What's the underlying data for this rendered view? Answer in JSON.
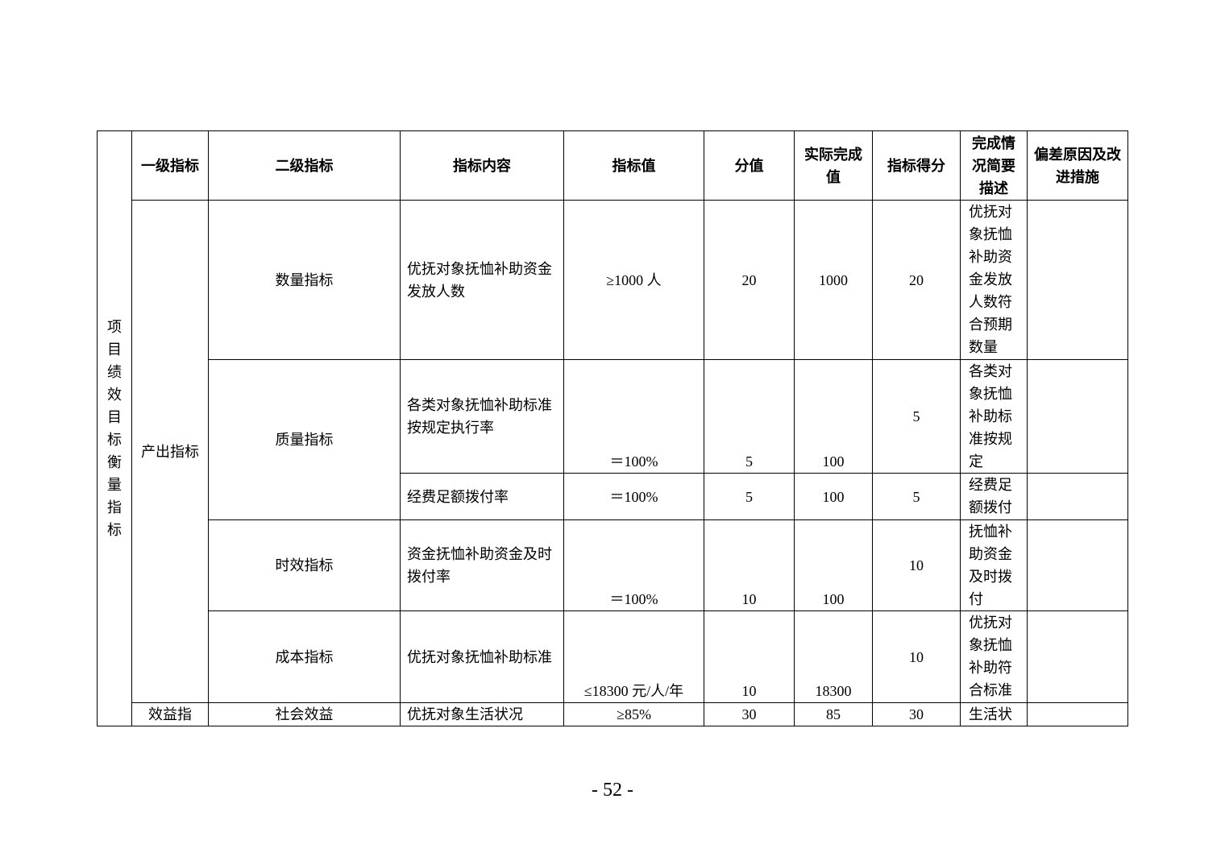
{
  "table": {
    "side_label": "项目绩效目标衡量指标",
    "headers": [
      "一级指标",
      "二级指标",
      "指标内容",
      "指标值",
      "分值",
      "实际完成值",
      "指标得分",
      "完成情况简要描述",
      "偏差原因及改进措施"
    ],
    "level1": [
      {
        "label": "产出指标"
      },
      {
        "label": "效益指"
      }
    ],
    "level2": [
      "数量指标",
      "质量指标",
      "时效指标",
      "成本指标",
      "社会效益"
    ],
    "rows": [
      {
        "content": "优抚对象抚恤补助资金发放人数",
        "target": "≥1000 人",
        "weight": "20",
        "actual": "1000",
        "score": "20",
        "description": "优抚对象抚恤补助资金发放人数符合预期数量",
        "deviation": ""
      },
      {
        "content": "各类对象抚恤补助标准按规定执行率",
        "target": "＝100%",
        "weight": "5",
        "actual": "100",
        "score": "5",
        "description": "各类对象抚恤补助标准按规定",
        "deviation": ""
      },
      {
        "content": "经费足额拨付率",
        "target": "＝100%",
        "weight": "5",
        "actual": "100",
        "score": "5",
        "description": "经费足额拨付",
        "deviation": ""
      },
      {
        "content": "资金抚恤补助资金及时拨付率",
        "target": "＝100%",
        "weight": "10",
        "actual": "100",
        "score": "10",
        "description": "抚恤补助资金及时拨付",
        "deviation": ""
      },
      {
        "content": "优抚对象抚恤补助标准",
        "target": "≤18300 元/人/年",
        "weight": "10",
        "actual": "18300",
        "score": "10",
        "description": "优抚对象抚恤补助符合标准",
        "deviation": ""
      },
      {
        "content": "优抚对象生活状况",
        "target": "≥85%",
        "weight": "30",
        "actual": "85",
        "score": "30",
        "description": "生活状",
        "deviation": ""
      }
    ]
  },
  "page_number": "- 52 -"
}
